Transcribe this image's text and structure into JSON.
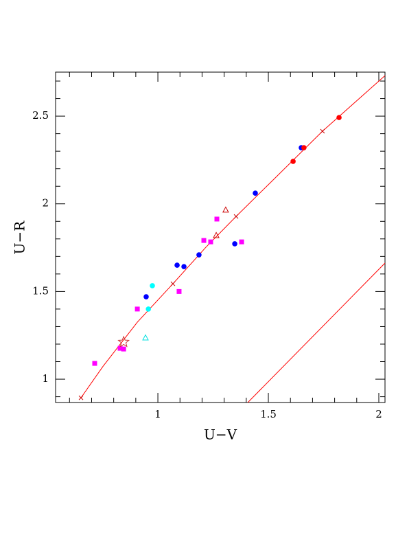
{
  "chart_data": {
    "type": "scatter",
    "xlabel": "U−V",
    "ylabel": "U−R",
    "xlim": [
      0.537,
      2.028
    ],
    "ylim": [
      0.867,
      2.751
    ],
    "xticks": [
      1,
      1.5,
      2
    ],
    "yticks": [
      1,
      1.5,
      2,
      2.5
    ],
    "xminorticks": [
      0.6,
      0.7,
      0.8,
      0.9,
      1.1,
      1.2,
      1.3,
      1.4,
      1.6,
      1.7,
      1.8,
      1.9
    ],
    "yminorticks": [
      0.9,
      1.1,
      1.2,
      1.3,
      1.4,
      1.6,
      1.7,
      1.8,
      1.9,
      2.1,
      2.2,
      2.3,
      2.4,
      2.6,
      2.7
    ],
    "series": [
      {
        "marker": "line",
        "color": "#ff0000",
        "x": [
          0.652,
          0.752,
          0.907,
          1.068,
          1.217,
          1.354,
          1.528,
          1.745,
          2.028
        ],
        "values": [
          0.894,
          1.074,
          1.325,
          1.544,
          1.752,
          1.928,
          2.144,
          2.414,
          2.731
        ]
      },
      {
        "marker": "line",
        "color": "#ff0000",
        "x": [
          1.407,
          2.028
        ],
        "values": [
          0.867,
          1.662
        ]
      },
      {
        "marker": "cross",
        "color": "#cc0000",
        "x": [
          0.652,
          1.068,
          1.354,
          1.745
        ],
        "values": [
          0.894,
          1.544,
          1.928,
          2.414
        ]
      },
      {
        "marker": "square",
        "color": "#ff00ff",
        "x": [
          0.714,
          0.829,
          0.845,
          0.907,
          1.096,
          1.208,
          1.239,
          1.267,
          1.379
        ],
        "values": [
          1.09,
          1.176,
          1.172,
          1.4,
          1.5,
          1.791,
          1.783,
          1.913,
          1.783
        ]
      },
      {
        "marker": "circle",
        "color": "#0000ff",
        "x": [
          0.947,
          1.087,
          1.118,
          1.186,
          1.348,
          1.441,
          1.649
        ],
        "values": [
          1.47,
          1.65,
          1.642,
          1.709,
          1.772,
          2.061,
          2.32
        ]
      },
      {
        "marker": "circle",
        "color": "#ff0000",
        "x": [
          1.612,
          1.661,
          1.82
        ],
        "values": [
          2.242,
          2.32,
          2.492
        ]
      },
      {
        "marker": "circle",
        "color": "#00ffff",
        "x": [
          0.975,
          0.957
        ],
        "values": [
          1.533,
          1.4
        ]
      },
      {
        "marker": "triangle",
        "color": "#00e0e0",
        "x": [
          0.944
        ],
        "values": [
          1.235
        ]
      },
      {
        "marker": "triangle",
        "color": "#cc0000",
        "x": [
          1.307,
          1.264
        ],
        "values": [
          1.964,
          1.819
        ]
      },
      {
        "marker": "star",
        "color": "#cc3333",
        "x": [
          0.845
        ],
        "values": [
          1.212
        ]
      }
    ]
  }
}
